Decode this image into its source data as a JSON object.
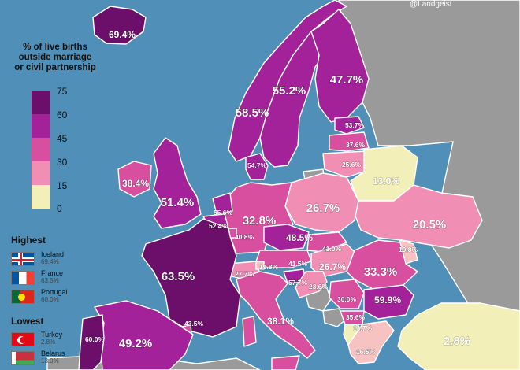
{
  "legend": {
    "title_lines": [
      "% of live births",
      "outside marriage",
      "or civil partnership"
    ],
    "ticks": [
      "75",
      "60",
      "45",
      "30",
      "15",
      "0"
    ],
    "colors": [
      "#6b0f6b",
      "#a3229a",
      "#d94fa0",
      "#f08fb3",
      "#f6c2c2",
      "#f3efb8"
    ]
  },
  "highest": {
    "title": "Highest",
    "items": [
      {
        "name": "Iceland",
        "value": "69.4%"
      },
      {
        "name": "France",
        "value": "63.5%"
      },
      {
        "name": "Portugal",
        "value": "60.0%"
      }
    ]
  },
  "lowest": {
    "title": "Lowest",
    "items": [
      {
        "name": "Turkey",
        "value": "2.8%"
      },
      {
        "name": "Belarus",
        "value": "13.0%"
      }
    ]
  },
  "logo_text": "@Landgeist",
  "countries": [
    {
      "name": "Iceland",
      "value": "69.4%",
      "pct": 69.4
    },
    {
      "name": "Norway",
      "value": "58.5%",
      "pct": 58.5
    },
    {
      "name": "Sweden",
      "value": "55.2%",
      "pct": 55.2
    },
    {
      "name": "Finland",
      "value": "47.7%",
      "pct": 47.7
    },
    {
      "name": "Estonia",
      "value": "53.7%",
      "pct": 53.7
    },
    {
      "name": "Latvia",
      "value": "37.6%",
      "pct": 37.6
    },
    {
      "name": "Lithuania",
      "value": "25.6%",
      "pct": 25.6
    },
    {
      "name": "Denmark",
      "value": "54.7%",
      "pct": 54.7
    },
    {
      "name": "Ireland",
      "value": "38.4%",
      "pct": 38.4
    },
    {
      "name": "United Kingdom",
      "value": "51.4%",
      "pct": 51.4
    },
    {
      "name": "Netherlands",
      "value": "55.6%",
      "pct": 55.6
    },
    {
      "name": "Belgium",
      "value": "52.4%",
      "pct": 52.4
    },
    {
      "name": "Luxembourg",
      "value": "40.8%",
      "pct": 40.8
    },
    {
      "name": "Germany",
      "value": "32.8%",
      "pct": 32.8
    },
    {
      "name": "Poland",
      "value": "26.7%",
      "pct": 26.7
    },
    {
      "name": "Belarus",
      "value": "13.0%",
      "pct": 13.0
    },
    {
      "name": "Ukraine",
      "value": "20.5%",
      "pct": 20.5
    },
    {
      "name": "Czechia",
      "value": "48.5%",
      "pct": 48.5
    },
    {
      "name": "Slovakia",
      "value": "41.0%",
      "pct": 41.0
    },
    {
      "name": "Austria",
      "value": "41.5%",
      "pct": 41.5
    },
    {
      "name": "Hungary",
      "value": "26.7%",
      "pct": 26.7
    },
    {
      "name": "Moldova",
      "value": "19.8%",
      "pct": 19.8
    },
    {
      "name": "Romania",
      "value": "33.3%",
      "pct": 33.3
    },
    {
      "name": "Switzerland",
      "value": "27.7%",
      "pct": 27.7
    },
    {
      "name": "Liechtenstein",
      "value": "19.8%",
      "pct": 19.8
    },
    {
      "name": "Slovenia",
      "value": "57.7%",
      "pct": 57.7
    },
    {
      "name": "Croatia",
      "value": "23.6%",
      "pct": 23.6
    },
    {
      "name": "Serbia",
      "value": "30.0%",
      "pct": 30.0
    },
    {
      "name": "Bulgaria",
      "value": "59.9%",
      "pct": 59.9
    },
    {
      "name": "North Macedonia",
      "value": "35.6%",
      "pct": 35.6
    },
    {
      "name": "Albania",
      "value": "13.7%",
      "pct": 13.7
    },
    {
      "name": "Greece",
      "value": "16.5%",
      "pct": 16.5
    },
    {
      "name": "France",
      "value": "63.5%",
      "pct": 63.5
    },
    {
      "name": "Spain",
      "value": "49.2%",
      "pct": 49.2
    },
    {
      "name": "Portugal",
      "value": "60.0%",
      "pct": 60.0
    },
    {
      "name": "Andorra",
      "value": "43.5%",
      "pct": 43.5
    },
    {
      "name": "Italy",
      "value": "38.1%",
      "pct": 38.1
    },
    {
      "name": "Turkey",
      "value": "2.8%",
      "pct": 2.8
    }
  ]
}
